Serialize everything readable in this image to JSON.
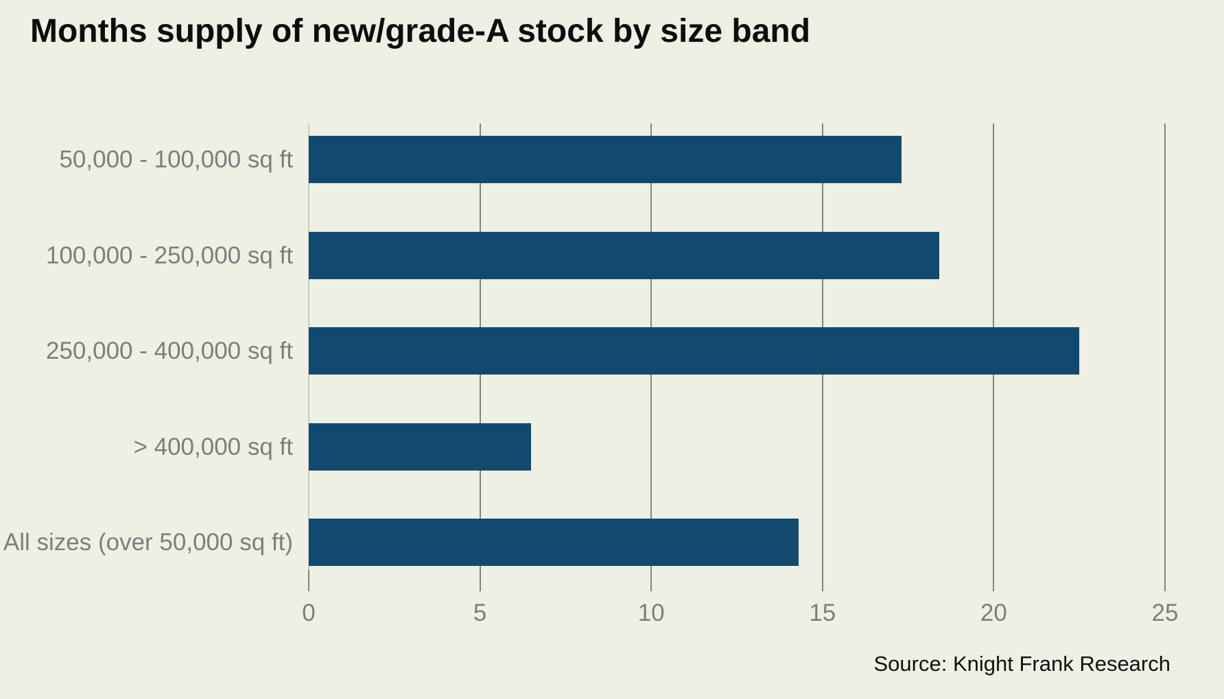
{
  "chart_data": {
    "type": "bar",
    "orientation": "horizontal",
    "title": "Months supply of new/grade-A stock by size band",
    "source": "Source: Knight Frank Research",
    "categories": [
      "50,000 - 100,000 sq ft",
      "100,000 - 250,000 sq ft",
      "250,000 - 400,000 sq ft",
      "> 400,000 sq ft",
      "All sizes (over 50,000 sq ft)"
    ],
    "values": [
      17.3,
      18.4,
      22.5,
      6.5,
      14.3
    ],
    "xlabel": "",
    "ylabel": "",
    "xlim": [
      0,
      25
    ],
    "x_ticks": [
      0,
      5,
      10,
      15,
      20,
      25
    ],
    "grid": true,
    "legend": "none",
    "colors": {
      "background": "#eef0e3",
      "bar": "#114a6e",
      "gridline": "#84847c",
      "zero_line": "#cbccc4",
      "axis_label": "#7d7d7d",
      "category_label": "#7d7d7d",
      "title": "#0d0d0d",
      "source": "#111111"
    }
  }
}
